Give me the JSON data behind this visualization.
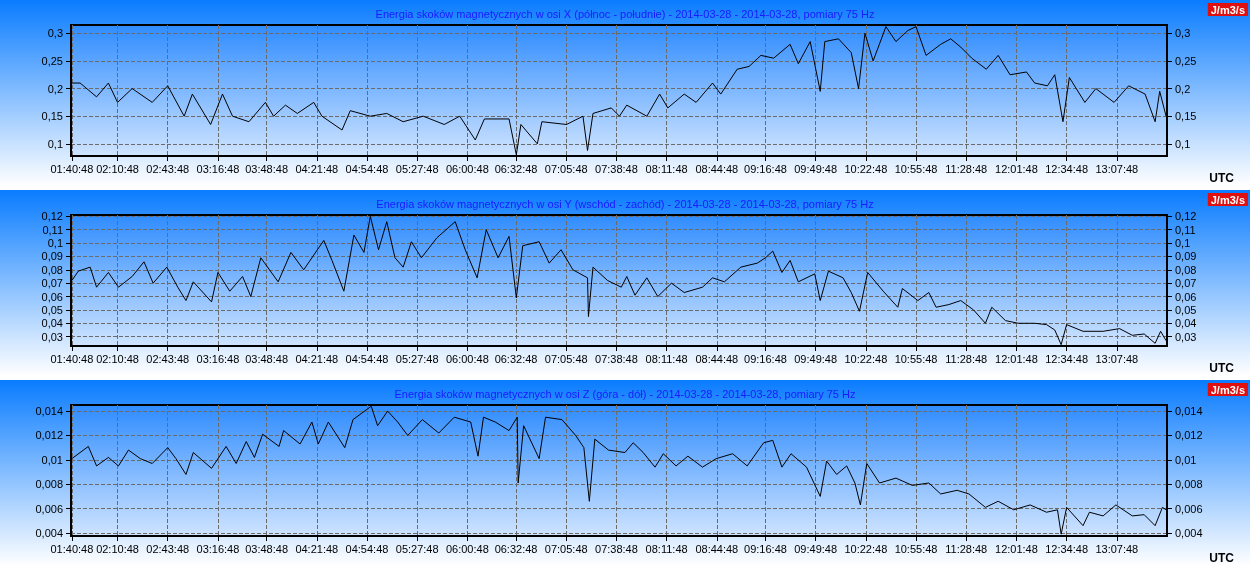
{
  "chart_data": [
    {
      "type": "line",
      "title": "Energia skoków magnetycznych w osi X (północ - południe) - 2014-03-28 - 2014-03-28, pomiary 75 Hz",
      "xlabel": "UTC",
      "y2label": "J/m3/s",
      "x": [
        1.68,
        1.77,
        1.95,
        2.08,
        2.18,
        2.34,
        2.56,
        2.73,
        2.91,
        3.0,
        3.2,
        3.33,
        3.44,
        3.62,
        3.8,
        3.89,
        4.02,
        4.15,
        4.33,
        4.42,
        4.64,
        4.73,
        4.95,
        5.13,
        5.31,
        5.53,
        5.76,
        5.93,
        6.1,
        6.2,
        6.47,
        6.55,
        6.6,
        6.78,
        6.83,
        7.1,
        7.28,
        7.33,
        7.39,
        7.59,
        7.68,
        7.76,
        7.98,
        8.12,
        8.21,
        8.39,
        8.52,
        8.7,
        8.79,
        8.97,
        9.1,
        9.23,
        9.37,
        9.55,
        9.64,
        9.77,
        9.88,
        9.93,
        10.08,
        10.22,
        10.3,
        10.37,
        10.46,
        10.6,
        10.71,
        10.84,
        10.93,
        11.04,
        11.2,
        11.31,
        11.42,
        11.54,
        11.7,
        11.83,
        11.96,
        12.14,
        12.23,
        12.37,
        12.45,
        12.54,
        12.61,
        12.78,
        12.9,
        13.1,
        13.26,
        13.44,
        13.55,
        13.6,
        13.67
      ],
      "series": [
        {
          "color": "#000000",
          "values": [
            0.21,
            0.21,
            0.185,
            0.21,
            0.175,
            0.2,
            0.175,
            0.205,
            0.15,
            0.19,
            0.135,
            0.19,
            0.15,
            0.14,
            0.175,
            0.15,
            0.17,
            0.155,
            0.175,
            0.15,
            0.125,
            0.16,
            0.15,
            0.155,
            0.14,
            0.15,
            0.135,
            0.15,
            0.107,
            0.145,
            0.145,
            0.08,
            0.135,
            0.1,
            0.14,
            0.135,
            0.15,
            0.088,
            0.155,
            0.165,
            0.15,
            0.17,
            0.15,
            0.19,
            0.165,
            0.19,
            0.175,
            0.21,
            0.19,
            0.235,
            0.24,
            0.26,
            0.255,
            0.28,
            0.245,
            0.285,
            0.195,
            0.285,
            0.29,
            0.265,
            0.2,
            0.3,
            0.25,
            0.312,
            0.285,
            0.305,
            0.312,
            0.26,
            0.28,
            0.29,
            0.275,
            0.255,
            0.235,
            0.26,
            0.225,
            0.23,
            0.21,
            0.205,
            0.225,
            0.14,
            0.22,
            0.175,
            0.2,
            0.175,
            0.205,
            0.19,
            0.14,
            0.195,
            0.15
          ]
        }
      ],
      "xlim": [
        1.67,
        13.68
      ],
      "xticks": [
        {
          "value": 1.68,
          "label": "01:40:48"
        },
        {
          "value": 2.18,
          "label": "02:10:48"
        },
        {
          "value": 2.73,
          "label": "02:43:48"
        },
        {
          "value": 3.28,
          "label": "03:16:48"
        },
        {
          "value": 3.8133,
          "label": "03:48:48"
        },
        {
          "value": 4.3633,
          "label": "04:21:48"
        },
        {
          "value": 4.9133,
          "label": "04:54:48"
        },
        {
          "value": 5.4633,
          "label": "05:27:48"
        },
        {
          "value": 6.0133,
          "label": "06:00:48"
        },
        {
          "value": 6.5467,
          "label": "06:32:48"
        },
        {
          "value": 7.0967,
          "label": "07:05:48"
        },
        {
          "value": 7.6467,
          "label": "07:38:48"
        },
        {
          "value": 8.1967,
          "label": "08:11:48"
        },
        {
          "value": 8.7467,
          "label": "08:44:48"
        },
        {
          "value": 9.28,
          "label": "09:16:48"
        },
        {
          "value": 9.83,
          "label": "09:49:48"
        },
        {
          "value": 10.38,
          "label": "10:22:48"
        },
        {
          "value": 10.93,
          "label": "10:55:48"
        },
        {
          "value": 11.48,
          "label": "11:28:48"
        },
        {
          "value": 12.03,
          "label": "12:01:48"
        },
        {
          "value": 12.58,
          "label": "12:34:48"
        },
        {
          "value": 13.13,
          "label": "13:07:48"
        }
      ],
      "ylim": [
        0.078,
        0.315
      ],
      "yticks": [
        {
          "value": 0.1,
          "label": "0,1"
        },
        {
          "value": 0.15,
          "label": "0,15"
        },
        {
          "value": 0.2,
          "label": "0,2"
        },
        {
          "value": 0.25,
          "label": "0,25"
        },
        {
          "value": 0.3,
          "label": "0,3"
        }
      ],
      "y2lim": [
        0.078,
        0.315
      ],
      "y2ticks": [
        {
          "value": 0.1,
          "label": "0,1"
        },
        {
          "value": 0.15,
          "label": "0,15"
        },
        {
          "value": 0.2,
          "label": "0,2"
        },
        {
          "value": 0.25,
          "label": "0,25"
        },
        {
          "value": 0.3,
          "label": "0,3"
        }
      ],
      "grid": true
    },
    {
      "type": "line",
      "title": "Energia skoków magnetycznych w osi Y (wschód - zachód) - 2014-03-28 - 2014-03-28, pomiary 75 Hz",
      "xlabel": "UTC",
      "y2label": "J/m3/s",
      "x": [
        1.68,
        1.75,
        1.88,
        1.95,
        2.08,
        2.19,
        2.34,
        2.47,
        2.57,
        2.72,
        2.84,
        2.93,
        3.01,
        3.21,
        3.28,
        3.41,
        3.55,
        3.64,
        3.75,
        3.94,
        4.08,
        4.22,
        4.44,
        4.53,
        4.66,
        4.77,
        4.88,
        4.95,
        5.04,
        5.13,
        5.22,
        5.31,
        5.4,
        5.51,
        5.68,
        5.88,
        5.99,
        6.12,
        6.22,
        6.35,
        6.47,
        6.55,
        6.62,
        6.8,
        6.91,
        7.04,
        7.17,
        7.33,
        7.34,
        7.39,
        7.55,
        7.7,
        7.76,
        7.85,
        7.98,
        8.1,
        8.25,
        8.39,
        8.59,
        8.7,
        8.83,
        9.01,
        9.19,
        9.28,
        9.36,
        9.46,
        9.55,
        9.64,
        9.82,
        9.88,
        9.97,
        10.13,
        10.22,
        10.31,
        10.4,
        10.57,
        10.73,
        10.78,
        10.95,
        11.07,
        11.15,
        11.29,
        11.42,
        11.56,
        11.69,
        11.76,
        11.91,
        12.05,
        12.23,
        12.36,
        12.45,
        12.52,
        12.58,
        12.76,
        12.98,
        13.16,
        13.3,
        13.43,
        13.55,
        13.61,
        13.67
      ],
      "series": [
        {
          "color": "#000000",
          "values": [
            0.072,
            0.079,
            0.082,
            0.067,
            0.078,
            0.067,
            0.075,
            0.086,
            0.07,
            0.082,
            0.067,
            0.057,
            0.071,
            0.056,
            0.078,
            0.064,
            0.075,
            0.06,
            0.089,
            0.071,
            0.093,
            0.08,
            0.102,
            0.087,
            0.064,
            0.106,
            0.093,
            0.12,
            0.095,
            0.116,
            0.089,
            0.082,
            0.101,
            0.089,
            0.104,
            0.116,
            0.095,
            0.074,
            0.11,
            0.089,
            0.105,
            0.059,
            0.098,
            0.101,
            0.085,
            0.095,
            0.08,
            0.074,
            0.045,
            0.082,
            0.072,
            0.067,
            0.075,
            0.061,
            0.074,
            0.06,
            0.07,
            0.063,
            0.067,
            0.074,
            0.071,
            0.082,
            0.085,
            0.089,
            0.094,
            0.078,
            0.087,
            0.071,
            0.077,
            0.057,
            0.079,
            0.074,
            0.063,
            0.049,
            0.078,
            0.064,
            0.052,
            0.066,
            0.057,
            0.063,
            0.052,
            0.054,
            0.057,
            0.05,
            0.04,
            0.052,
            0.042,
            0.04,
            0.04,
            0.039,
            0.035,
            0.024,
            0.039,
            0.034,
            0.034,
            0.036,
            0.031,
            0.032,
            0.025,
            0.034,
            0.027
          ]
        }
      ],
      "xlim": [
        1.67,
        13.68
      ],
      "xticks": [
        {
          "value": 1.68,
          "label": "01:40:48"
        },
        {
          "value": 2.18,
          "label": "02:10:48"
        },
        {
          "value": 2.73,
          "label": "02:43:48"
        },
        {
          "value": 3.28,
          "label": "03:16:48"
        },
        {
          "value": 3.8133,
          "label": "03:48:48"
        },
        {
          "value": 4.3633,
          "label": "04:21:48"
        },
        {
          "value": 4.9133,
          "label": "04:54:48"
        },
        {
          "value": 5.4633,
          "label": "05:27:48"
        },
        {
          "value": 6.0133,
          "label": "06:00:48"
        },
        {
          "value": 6.5467,
          "label": "06:32:48"
        },
        {
          "value": 7.0967,
          "label": "07:05:48"
        },
        {
          "value": 7.6467,
          "label": "07:38:48"
        },
        {
          "value": 8.1967,
          "label": "08:11:48"
        },
        {
          "value": 8.7467,
          "label": "08:44:48"
        },
        {
          "value": 9.28,
          "label": "09:16:48"
        },
        {
          "value": 9.83,
          "label": "09:49:48"
        },
        {
          "value": 10.38,
          "label": "10:22:48"
        },
        {
          "value": 10.93,
          "label": "10:55:48"
        },
        {
          "value": 11.48,
          "label": "11:28:48"
        },
        {
          "value": 12.03,
          "label": "12:01:48"
        },
        {
          "value": 12.58,
          "label": "12:34:48"
        },
        {
          "value": 13.13,
          "label": "13:07:48"
        }
      ],
      "ylim": [
        0.023,
        0.121
      ],
      "yticks": [
        {
          "value": 0.03,
          "label": "0,03"
        },
        {
          "value": 0.04,
          "label": "0,04"
        },
        {
          "value": 0.05,
          "label": "0,05"
        },
        {
          "value": 0.06,
          "label": "0,06"
        },
        {
          "value": 0.07,
          "label": "0,07"
        },
        {
          "value": 0.08,
          "label": "0,08"
        },
        {
          "value": 0.09,
          "label": "0,09"
        },
        {
          "value": 0.1,
          "label": "0,1"
        },
        {
          "value": 0.11,
          "label": "0,11"
        },
        {
          "value": 0.12,
          "label": "0,12"
        }
      ],
      "y2lim": [
        0.023,
        0.121
      ],
      "y2ticks": [
        {
          "value": 0.03,
          "label": "0,03"
        },
        {
          "value": 0.04,
          "label": "0,04"
        },
        {
          "value": 0.05,
          "label": "0,05"
        },
        {
          "value": 0.06,
          "label": "0,06"
        },
        {
          "value": 0.07,
          "label": "0,07"
        },
        {
          "value": 0.08,
          "label": "0,08"
        },
        {
          "value": 0.09,
          "label": "0,09"
        },
        {
          "value": 0.1,
          "label": "0,1"
        },
        {
          "value": 0.11,
          "label": "0,11"
        },
        {
          "value": 0.12,
          "label": "0,12"
        }
      ],
      "grid": true
    },
    {
      "type": "line",
      "title": "Energia skoków magnetycznych w osi Z (góra - dół) - 2014-03-28 - 2014-03-28, pomiary 75 Hz",
      "xlabel": "UTC",
      "y2label": "J/m3/s",
      "x": [
        1.68,
        1.86,
        1.95,
        2.08,
        2.19,
        2.3,
        2.43,
        2.56,
        2.73,
        2.82,
        2.93,
        3.01,
        3.21,
        3.37,
        3.48,
        3.59,
        3.68,
        3.77,
        3.95,
        4.0,
        4.18,
        4.31,
        4.38,
        4.49,
        4.67,
        4.76,
        4.96,
        5.03,
        5.14,
        5.25,
        5.36,
        5.52,
        5.7,
        5.87,
        6.05,
        6.13,
        6.19,
        6.32,
        6.47,
        6.56,
        6.57,
        6.63,
        6.8,
        6.87,
        7.05,
        7.2,
        7.29,
        7.35,
        7.41,
        7.56,
        7.74,
        7.83,
        7.94,
        8.07,
        8.16,
        8.3,
        8.43,
        8.59,
        8.74,
        8.92,
        9.08,
        9.26,
        9.36,
        9.46,
        9.56,
        9.73,
        9.88,
        9.95,
        10.06,
        10.17,
        10.26,
        10.32,
        10.39,
        10.53,
        10.71,
        10.89,
        11.07,
        11.2,
        11.38,
        11.51,
        11.69,
        11.83,
        12.0,
        12.18,
        12.36,
        12.48,
        12.52,
        12.58,
        12.76,
        12.83,
        12.98,
        13.12,
        13.3,
        13.43,
        13.55,
        13.63,
        13.67
      ],
      "series": [
        {
          "color": "#000000",
          "values": [
            0.0101,
            0.0111,
            0.0095,
            0.0102,
            0.0095,
            0.0108,
            0.0101,
            0.0097,
            0.011,
            0.0101,
            0.0088,
            0.0106,
            0.0093,
            0.0111,
            0.0097,
            0.0115,
            0.0102,
            0.0121,
            0.0111,
            0.0124,
            0.0113,
            0.0131,
            0.0113,
            0.0131,
            0.011,
            0.0133,
            0.0144,
            0.0128,
            0.014,
            0.0131,
            0.012,
            0.0133,
            0.0122,
            0.0135,
            0.0131,
            0.0103,
            0.0135,
            0.0131,
            0.0124,
            0.0135,
            0.0081,
            0.0128,
            0.0101,
            0.0135,
            0.0133,
            0.012,
            0.011,
            0.0066,
            0.0117,
            0.0108,
            0.0106,
            0.0114,
            0.0106,
            0.0094,
            0.0105,
            0.0095,
            0.0103,
            0.0094,
            0.0101,
            0.0105,
            0.0095,
            0.0114,
            0.0116,
            0.0094,
            0.0105,
            0.0094,
            0.007,
            0.0099,
            0.0088,
            0.0095,
            0.0081,
            0.0063,
            0.0097,
            0.0081,
            0.0085,
            0.0079,
            0.0081,
            0.0072,
            0.0075,
            0.0072,
            0.0061,
            0.0066,
            0.0059,
            0.0063,
            0.0057,
            0.0059,
            0.0039,
            0.0061,
            0.0046,
            0.0057,
            0.0054,
            0.0063,
            0.0054,
            0.0055,
            0.0046,
            0.0061,
            0.0059
          ]
        }
      ],
      "xlim": [
        1.67,
        13.68
      ],
      "xticks": [
        {
          "value": 1.68,
          "label": "01:40:48"
        },
        {
          "value": 2.18,
          "label": "02:10:48"
        },
        {
          "value": 2.73,
          "label": "02:43:48"
        },
        {
          "value": 3.28,
          "label": "03:16:48"
        },
        {
          "value": 3.8133,
          "label": "03:48:48"
        },
        {
          "value": 4.3633,
          "label": "04:21:48"
        },
        {
          "value": 4.9133,
          "label": "04:54:48"
        },
        {
          "value": 5.4633,
          "label": "05:27:48"
        },
        {
          "value": 6.0133,
          "label": "06:00:48"
        },
        {
          "value": 6.5467,
          "label": "06:32:48"
        },
        {
          "value": 7.0967,
          "label": "07:05:48"
        },
        {
          "value": 7.6467,
          "label": "07:38:48"
        },
        {
          "value": 8.1967,
          "label": "08:11:48"
        },
        {
          "value": 8.7467,
          "label": "08:44:48"
        },
        {
          "value": 9.28,
          "label": "09:16:48"
        },
        {
          "value": 9.83,
          "label": "09:49:48"
        },
        {
          "value": 10.38,
          "label": "10:22:48"
        },
        {
          "value": 10.93,
          "label": "10:55:48"
        },
        {
          "value": 11.48,
          "label": "11:28:48"
        },
        {
          "value": 12.03,
          "label": "12:01:48"
        },
        {
          "value": 12.58,
          "label": "12:34:48"
        },
        {
          "value": 13.13,
          "label": "13:07:48"
        }
      ],
      "ylim": [
        0.00375,
        0.0145
      ],
      "yticks": [
        {
          "value": 0.004,
          "label": "0,004"
        },
        {
          "value": 0.006,
          "label": "0,006"
        },
        {
          "value": 0.008,
          "label": "0,008"
        },
        {
          "value": 0.01,
          "label": "0,01"
        },
        {
          "value": 0.012,
          "label": "0,012"
        },
        {
          "value": 0.014,
          "label": "0,014"
        }
      ],
      "y2lim": [
        0.00375,
        0.0145
      ],
      "y2ticks": [
        {
          "value": 0.004,
          "label": "0,004"
        },
        {
          "value": 0.006,
          "label": "0,006"
        },
        {
          "value": 0.008,
          "label": "0,008"
        },
        {
          "value": 0.01,
          "label": "0,01"
        },
        {
          "value": 0.012,
          "label": "0,012"
        },
        {
          "value": 0.014,
          "label": "0,014"
        }
      ],
      "grid": true
    }
  ]
}
